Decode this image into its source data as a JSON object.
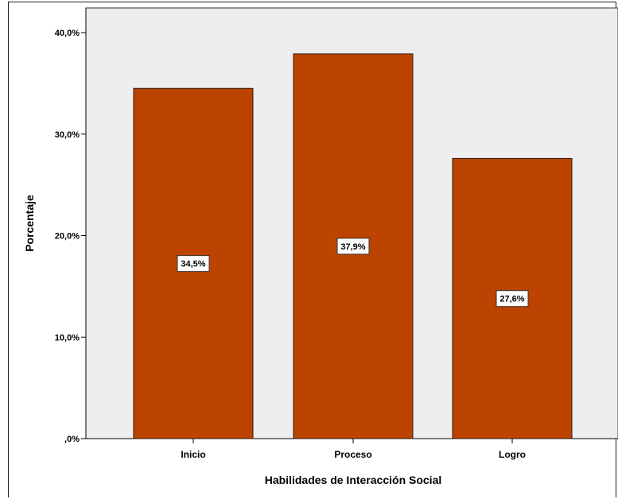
{
  "chart_data": {
    "type": "bar",
    "categories": [
      "Inicio",
      "Proceso",
      "Logro"
    ],
    "values": [
      34.5,
      37.9,
      27.6
    ],
    "data_labels": [
      "34,5%",
      "37,9%",
      "27,6%"
    ],
    "title": "",
    "xlabel": "Habilidades de Interacción Social",
    "ylabel": "Porcentaje",
    "ylim": [
      0,
      40
    ],
    "yticks": [
      0,
      10,
      20,
      30,
      40
    ],
    "ytick_labels": [
      ",0%",
      "10,0%",
      "20,0%",
      "30,0%",
      "40,0%"
    ],
    "grid": false,
    "legend": "none"
  },
  "colors": {
    "bar_fill": "#BC4400",
    "bar_stroke": "#2a1a10",
    "plot_background": "#EEEEEE",
    "axis": "#000000"
  }
}
